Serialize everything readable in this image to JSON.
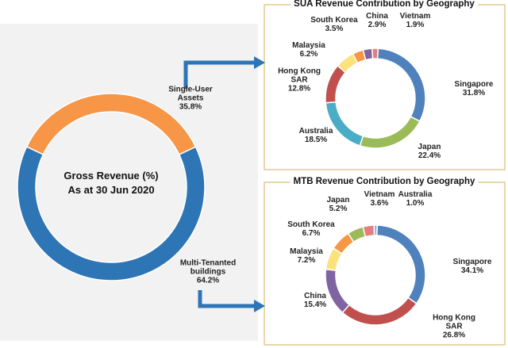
{
  "chart_data": [
    {
      "type": "pie",
      "title": "Gross Revenue (%)",
      "subtitle": "As at 30 Jun 2020",
      "categories": [
        "Single-User Assets",
        "Multi-Tenanted buildings"
      ],
      "values": [
        35.8,
        64.2
      ],
      "value_labels": [
        "35.8%",
        "64.2%"
      ],
      "colors": [
        "#f79646",
        "#2e75b6"
      ]
    },
    {
      "type": "pie",
      "title": "SUA Revenue Contribution by Geography",
      "categories": [
        "Singapore",
        "Japan",
        "Australia",
        "Hong Kong SAR",
        "Malaysia",
        "South Korea",
        "China",
        "Vietnam"
      ],
      "values": [
        31.8,
        22.4,
        18.5,
        12.8,
        6.2,
        3.5,
        2.9,
        1.9
      ],
      "value_labels": [
        "31.8%",
        "22.4%",
        "18.5%",
        "12.8%",
        "6.2%",
        "3.5%",
        "2.9%",
        "1.9%"
      ],
      "colors": [
        "#4f81bd",
        "#9bbb59",
        "#4bacc6",
        "#c0504d",
        "#fbe27a",
        "#f79646",
        "#8064a2",
        "#e47d7d"
      ]
    },
    {
      "type": "pie",
      "title": "MTB Revenue Contribution by Geography",
      "categories": [
        "Singapore",
        "Hong Kong SAR",
        "China",
        "Malaysia",
        "South Korea",
        "Japan",
        "Vietnam",
        "Australia"
      ],
      "values": [
        34.1,
        26.8,
        15.4,
        7.2,
        6.7,
        5.2,
        3.6,
        1.0
      ],
      "value_labels": [
        "34.1%",
        "26.8%",
        "15.4%",
        "7.2%",
        "6.7%",
        "5.2%",
        "3.6%",
        "1.0%"
      ],
      "colors": [
        "#4f81bd",
        "#c0504d",
        "#8064a2",
        "#fbe27a",
        "#f79646",
        "#9bbb59",
        "#e47d7d",
        "#8eb4e3"
      ]
    }
  ]
}
